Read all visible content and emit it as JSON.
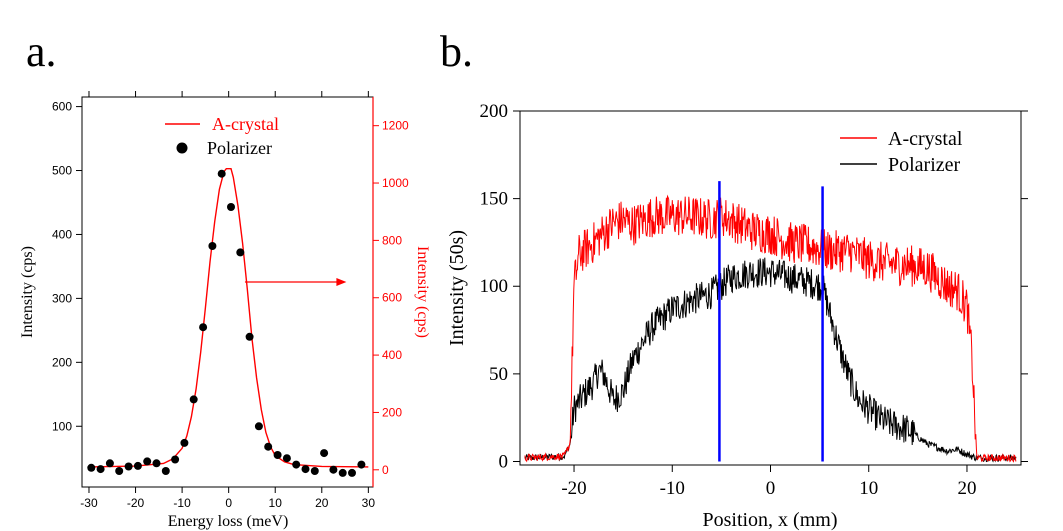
{
  "colors": {
    "black": "#000000",
    "red": "#ff0000",
    "blue": "#0000ff"
  },
  "chart_data": [
    {
      "panel_label": "a.",
      "type": "scatter",
      "title": "",
      "xlabel": "Energy loss (meV)",
      "ylabel": "Intensity (cps)",
      "y2label": "Intensity (cps)",
      "xlim": [
        -31.5,
        31
      ],
      "ylim": [
        5,
        615
      ],
      "y2lim": [
        -60,
        1300
      ],
      "x_ticks": [
        -30,
        -20,
        -10,
        0,
        10,
        20,
        30
      ],
      "x_tick_labels": [
        "-30",
        "-20",
        "-10",
        "0",
        "10",
        "20",
        "30"
      ],
      "y_ticks": [
        100,
        200,
        300,
        400,
        500,
        600
      ],
      "y_tick_labels": [
        "100",
        "200",
        "300",
        "400",
        "500",
        "600"
      ],
      "y2_ticks": [
        0,
        200,
        400,
        600,
        800,
        1000,
        1200
      ],
      "y2_tick_labels": [
        "0",
        "200",
        "400",
        "600",
        "800",
        "1000",
        "1200"
      ],
      "legend": {
        "position": "top-left",
        "entries": [
          {
            "label": "A-crystal",
            "marker": "line",
            "color": "#ff0000"
          },
          {
            "label": "Polarizer",
            "marker": "dot",
            "color": "#000000"
          }
        ]
      },
      "annotation": {
        "type": "arrow",
        "from_x": 3.5,
        "to_x": 24,
        "at_y2": 655,
        "color": "#ff0000",
        "meaning": "red curve uses right axis"
      },
      "series": [
        {
          "name": "Polarizer",
          "kind": "scatter",
          "axis": "left",
          "color": "#000000",
          "x": [
            -29.5,
            -27.5,
            -25.5,
            -23.5,
            -21.5,
            -19.5,
            -17.5,
            -15.5,
            -13.5,
            -11.5,
            -9.5,
            -7.5,
            -5.5,
            -3.5,
            -1.5,
            0.5,
            2.5,
            4.5,
            6.5,
            8.5,
            10.5,
            12.5,
            14.5,
            16.5,
            18.5,
            20.5,
            22.5,
            24.5,
            26.5,
            28.5
          ],
          "y": [
            35,
            33,
            42,
            30,
            37,
            38,
            45,
            42,
            30,
            48,
            74,
            142,
            255,
            382,
            495,
            443,
            372,
            240,
            100,
            68,
            55,
            50,
            40,
            33,
            30,
            58,
            32,
            27,
            27,
            40
          ]
        },
        {
          "name": "A-crystal",
          "kind": "line",
          "axis": "right",
          "color": "#ff0000",
          "x": [
            -30,
            -20,
            -14,
            -12,
            -10,
            -9,
            -8,
            -7,
            -6,
            -5,
            -4,
            -3,
            -2,
            -1,
            -0.5,
            0.5,
            1,
            2,
            3,
            4,
            5,
            6,
            7,
            8,
            9,
            10,
            12,
            14,
            20,
            30
          ],
          "y": [
            10,
            13,
            22,
            38,
            75,
            118,
            185,
            282,
            410,
            565,
            725,
            865,
            978,
            1040,
            1050,
            1050,
            1020,
            920,
            790,
            630,
            460,
            320,
            210,
            130,
            80,
            50,
            28,
            18,
            12,
            10
          ]
        }
      ]
    },
    {
      "panel_label": "b.",
      "type": "line",
      "title": "",
      "xlabel": "Position, x (mm)",
      "ylabel": "Intensity (50s)",
      "xlim": [
        -25.5,
        25.5
      ],
      "ylim": [
        -2,
        200
      ],
      "x_ticks": [
        -20,
        -10,
        0,
        10,
        20
      ],
      "x_tick_labels": [
        "-20",
        "-10",
        "0",
        "10",
        "20"
      ],
      "y_ticks": [
        0,
        50,
        100,
        150,
        200
      ],
      "y_tick_labels": [
        "0",
        "50",
        "100",
        "150",
        "200"
      ],
      "legend": {
        "position": "top-right",
        "entries": [
          {
            "label": "A-crystal",
            "marker": "line",
            "color": "#ff0000"
          },
          {
            "label": "Polarizer",
            "marker": "line",
            "color": "#000000"
          }
        ]
      },
      "vlines": [
        {
          "x": -5.2,
          "y_top": 160,
          "color": "#0000ff"
        },
        {
          "x": 5.3,
          "y_top": 157,
          "color": "#0000ff"
        }
      ],
      "series": [
        {
          "name": "A-crystal",
          "color": "#ff0000",
          "x": [
            -25,
            -21,
            -20.4,
            -20,
            -19.5,
            -18,
            -16,
            -15,
            -14,
            -12,
            -10,
            -8,
            -6,
            -5,
            -4,
            -2,
            0,
            2,
            4,
            6,
            8,
            10,
            12,
            14,
            16,
            17,
            18,
            19,
            20,
            20.5,
            21,
            25
          ],
          "y": [
            2,
            3,
            10,
            100,
            118,
            125,
            136,
            138,
            135,
            140,
            140,
            140,
            138,
            140,
            138,
            132,
            130,
            125,
            123,
            120,
            120,
            115,
            113,
            112,
            110,
            105,
            100,
            98,
            88,
            60,
            2,
            2
          ]
        },
        {
          "name": "Polarizer",
          "color": "#000000",
          "x": [
            -25,
            -21,
            -20.4,
            -20,
            -19,
            -18,
            -17.5,
            -17,
            -16,
            -15,
            -14,
            -13,
            -12,
            -11,
            -10,
            -8,
            -6,
            -4,
            -2,
            0,
            2,
            4,
            5.3,
            6,
            7,
            8,
            9,
            10,
            11,
            12,
            13,
            14,
            16,
            18,
            19,
            20,
            21,
            25
          ],
          "y": [
            2,
            3,
            10,
            30,
            38,
            45,
            52,
            50,
            35,
            40,
            58,
            68,
            77,
            82,
            87,
            92,
            96,
            105,
            108,
            108,
            105,
            102,
            100,
            85,
            65,
            48,
            35,
            30,
            25,
            22,
            20,
            18,
            10,
            6,
            7,
            4,
            2,
            2
          ]
        }
      ]
    }
  ]
}
